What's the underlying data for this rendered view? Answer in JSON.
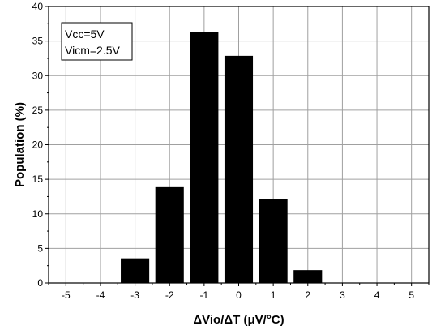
{
  "chart_data": {
    "type": "bar",
    "x": [
      -3,
      -2,
      -1,
      0,
      1,
      2
    ],
    "values": [
      3.5,
      13.8,
      36.2,
      32.8,
      12.1,
      1.8
    ],
    "xlabel": "ΔVio/ΔT (μV/°C)",
    "ylabel": "Population (%)",
    "xlim": [
      -5.5,
      5.5
    ],
    "ylim": [
      0,
      40
    ],
    "xticks": [
      "-5",
      "-4",
      "-3",
      "-2",
      "-1",
      "0",
      "1",
      "2",
      "3",
      "4",
      "5"
    ],
    "yticks": [
      "0",
      "5",
      "10",
      "15",
      "20",
      "25",
      "30",
      "35",
      "40"
    ],
    "grid": true,
    "bar_color": "#000000",
    "annotation_lines": [
      "Vcc=5V",
      "Vicm=2.5V"
    ],
    "annotation_position": "top-left"
  }
}
